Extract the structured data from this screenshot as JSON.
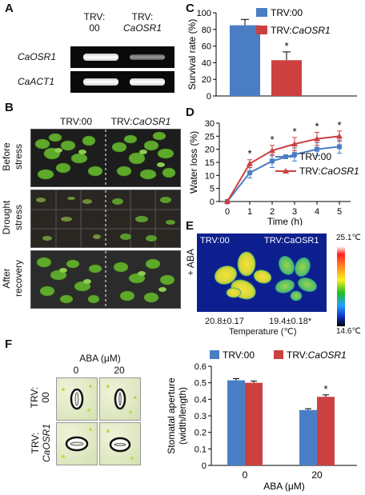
{
  "panel_letters": {
    "a": "A",
    "b": "B",
    "c": "C",
    "d": "D",
    "e": "E",
    "f": "F"
  },
  "panel_a": {
    "col1": {
      "line1": "TRV:",
      "line2": "00"
    },
    "col2": {
      "line1": "TRV:",
      "line2": "CaOSR1"
    },
    "rows": [
      "CaOSR1",
      "CaACT1"
    ]
  },
  "panel_b": {
    "headers": {
      "left": "TRV:00",
      "right_prefix": "TRV:",
      "right_gene": "CaOSR1"
    },
    "rows": [
      {
        "line1": "Before",
        "line2": "stress"
      },
      {
        "line1": "Drought",
        "line2": "stress"
      },
      {
        "line1": "After",
        "line2": "recovery"
      }
    ]
  },
  "panel_e": {
    "side_label": "+ ABA",
    "left_label": "TRV:00",
    "right_label": "TRV:CaOSR1",
    "left_value": "20.8±0.17",
    "right_value": "19.4±0.18*",
    "axis_label": "Temperature (℃)",
    "scale_max": "25.1℃",
    "scale_min": "14.6℃"
  },
  "panel_f_images": {
    "title": "ABA (μM)",
    "cols": [
      "0",
      "20"
    ],
    "rows": [
      {
        "line1": "TRV:",
        "line2": "00"
      },
      {
        "line1": "TRV:",
        "line2": "CaOSR1"
      }
    ]
  },
  "colors": {
    "trv00": "#4a7ec4",
    "trvcaosr1": "#cc4040"
  },
  "chart_data": [
    {
      "type": "bar",
      "categories": [
        "TRV:00",
        "TRV:CaOSR1"
      ],
      "values": [
        85,
        43
      ],
      "errors": [
        7,
        10
      ],
      "significance": [
        "",
        "*"
      ],
      "legend": [
        "TRV:00",
        "TRV:CaOSR1"
      ],
      "legend_prefix": "TRV:",
      "legend_gene": "CaOSR1",
      "ylabel": "Survival rate (%)",
      "ylim": [
        0,
        100
      ],
      "yticks": [
        0,
        20,
        40,
        60,
        80,
        100
      ]
    },
    {
      "type": "line",
      "x": [
        0,
        1,
        2,
        3,
        4,
        5
      ],
      "series": [
        {
          "name": "TRV:00",
          "values": [
            0,
            11,
            15.5,
            18,
            20,
            21
          ],
          "errors": [
            0,
            2,
            2.5,
            2.5,
            2.5,
            2.5
          ]
        },
        {
          "name": "TRV:CaOSR1",
          "values": [
            0,
            14.5,
            19.5,
            22,
            24,
            25
          ],
          "errors": [
            0,
            1.5,
            2,
            2.5,
            2.5,
            2
          ]
        }
      ],
      "significance": [
        "",
        "*",
        "*",
        "*",
        "*",
        "*"
      ],
      "legend_prefix": "TRV:",
      "legend_gene": "CaOSR1",
      "xlabel": "Time (h)",
      "ylabel": "Water loss (%)",
      "xticks": [
        "0",
        "1",
        "2",
        "3",
        "4",
        "5"
      ],
      "yticks": [
        0,
        5,
        10,
        15,
        20,
        25,
        30
      ],
      "ylim": [
        0,
        30
      ]
    },
    {
      "type": "bar",
      "categories": [
        "0",
        "20"
      ],
      "series": [
        {
          "name": "TRV:00",
          "values": [
            0.515,
            0.335
          ],
          "errors": [
            0.01,
            0.008
          ]
        },
        {
          "name": "TRV:CaOSR1",
          "values": [
            0.5,
            0.415
          ],
          "errors": [
            0.01,
            0.012
          ]
        }
      ],
      "significance": [
        "",
        "*"
      ],
      "legend_prefix": "TRV:",
      "legend_gene": "CaOSR1",
      "xlabel": "ABA (μM)",
      "ylabel_line1": "Stomatal aperture",
      "ylabel_line2": "(width/length)",
      "ylim": [
        0,
        0.6
      ],
      "yticks": [
        "0",
        "0.1",
        "0.2",
        "0.3",
        "0.4",
        "0.5",
        "0.6"
      ]
    }
  ]
}
